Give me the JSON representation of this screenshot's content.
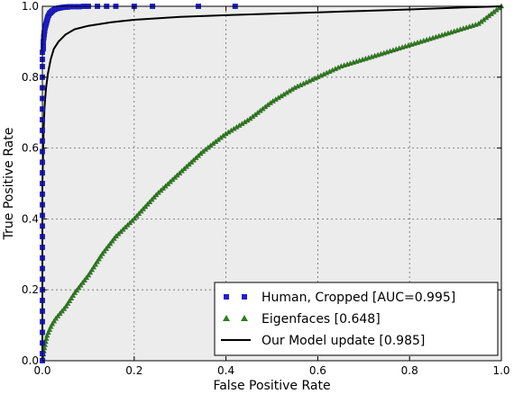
{
  "chart_data": {
    "type": "line",
    "xlabel": "False Positive Rate",
    "ylabel": "True Positive Rate",
    "xlim": [
      0,
      1
    ],
    "ylim": [
      0,
      1
    ],
    "xticks": [
      "0.0",
      "0.2",
      "0.4",
      "0.6",
      "0.8",
      "1.0"
    ],
    "yticks": [
      "0.0",
      "0.2",
      "0.4",
      "0.6",
      "0.8",
      "1.0"
    ],
    "grid": true,
    "legend_position": "lower-right",
    "series": [
      {
        "name": "Human, Cropped [AUC=0.995]",
        "marker": "square",
        "color": "#1f1fd8",
        "x": [
          0.0,
          0.0,
          0.0,
          0.0,
          0.0,
          0.0,
          0.0,
          0.0,
          0.0,
          0.0,
          0.0,
          0.0,
          0.0,
          0.0,
          0.0,
          0.0,
          0.0,
          0.0,
          0.0,
          0.0,
          0.0,
          0.0,
          0.0,
          0.0,
          0.0,
          0.0,
          0.0,
          0.0,
          0.0,
          0.0,
          0.0,
          0.002,
          0.002,
          0.002,
          0.003,
          0.003,
          0.004,
          0.004,
          0.005,
          0.005,
          0.006,
          0.007,
          0.008,
          0.009,
          0.01,
          0.011,
          0.012,
          0.014,
          0.016,
          0.018,
          0.02,
          0.022,
          0.025,
          0.028,
          0.032,
          0.036,
          0.04,
          0.045,
          0.05,
          0.055,
          0.06,
          0.07,
          0.08,
          0.09,
          0.1,
          0.12,
          0.14,
          0.16,
          0.2,
          0.24,
          0.34,
          0.42
        ],
        "y": [
          0.0,
          0.02,
          0.05,
          0.08,
          0.11,
          0.14,
          0.17,
          0.2,
          0.23,
          0.26,
          0.29,
          0.32,
          0.35,
          0.38,
          0.41,
          0.44,
          0.47,
          0.5,
          0.53,
          0.56,
          0.59,
          0.62,
          0.65,
          0.68,
          0.71,
          0.74,
          0.77,
          0.8,
          0.83,
          0.85,
          0.87,
          0.88,
          0.89,
          0.9,
          0.91,
          0.915,
          0.92,
          0.925,
          0.93,
          0.935,
          0.94,
          0.945,
          0.95,
          0.955,
          0.96,
          0.965,
          0.97,
          0.975,
          0.98,
          0.982,
          0.985,
          0.987,
          0.99,
          0.992,
          0.994,
          0.995,
          0.996,
          0.997,
          0.998,
          0.998,
          0.999,
          0.999,
          0.999,
          1.0,
          1.0,
          1.0,
          1.0,
          1.0,
          1.0,
          1.0,
          1.0,
          1.0
        ]
      },
      {
        "name": "Eigenfaces [0.648]",
        "marker": "triangle",
        "color": "#2e7d1f",
        "x": [
          0.0,
          0.005,
          0.01,
          0.02,
          0.03,
          0.05,
          0.07,
          0.1,
          0.13,
          0.16,
          0.2,
          0.25,
          0.3,
          0.35,
          0.4,
          0.45,
          0.5,
          0.55,
          0.6,
          0.65,
          0.7,
          0.75,
          0.8,
          0.85,
          0.9,
          0.95,
          0.97,
          0.99,
          1.0
        ],
        "y": [
          0.0,
          0.04,
          0.07,
          0.1,
          0.12,
          0.15,
          0.19,
          0.24,
          0.3,
          0.35,
          0.4,
          0.47,
          0.53,
          0.59,
          0.64,
          0.68,
          0.73,
          0.77,
          0.8,
          0.83,
          0.85,
          0.87,
          0.89,
          0.91,
          0.93,
          0.95,
          0.97,
          0.99,
          1.0
        ]
      },
      {
        "name": "Our Model update [0.985]",
        "marker": "line",
        "color": "#000000",
        "x": [
          0.0,
          0.0,
          0.003,
          0.005,
          0.008,
          0.012,
          0.018,
          0.025,
          0.035,
          0.05,
          0.07,
          0.1,
          0.15,
          0.2,
          0.3,
          0.4,
          0.5,
          0.6,
          0.7,
          0.8,
          0.9,
          1.0
        ],
        "y": [
          0.0,
          0.5,
          0.66,
          0.72,
          0.77,
          0.81,
          0.85,
          0.88,
          0.9,
          0.92,
          0.935,
          0.945,
          0.955,
          0.962,
          0.97,
          0.975,
          0.979,
          0.983,
          0.987,
          0.991,
          0.996,
          1.0
        ]
      }
    ]
  }
}
